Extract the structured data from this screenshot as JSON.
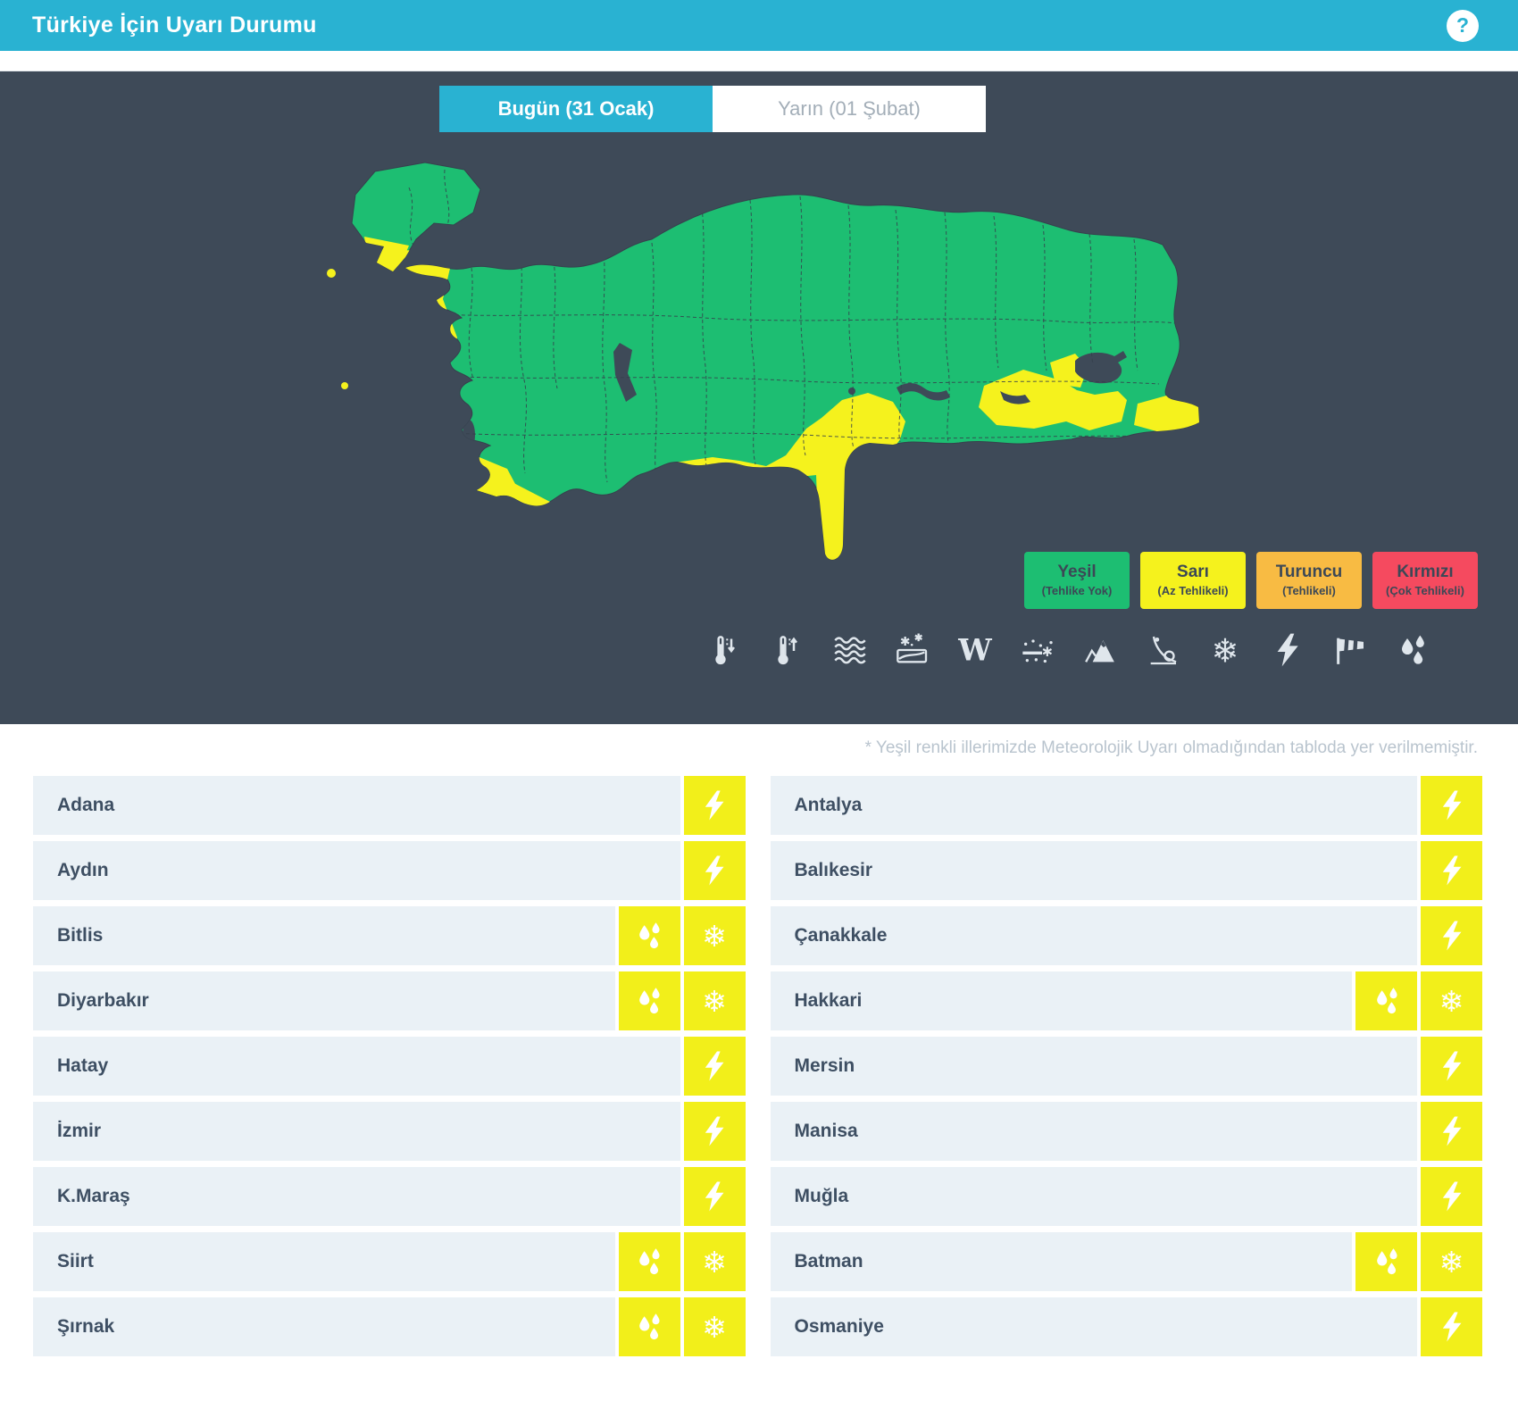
{
  "header": {
    "title": "Türkiye İçin Uyarı Durumu",
    "help_glyph": "?"
  },
  "tabs": [
    {
      "id": "today",
      "label": "Bugün (31 Ocak)",
      "active": true
    },
    {
      "id": "tomorrow",
      "label": "Yarın (01 Şubat)",
      "active": false
    }
  ],
  "map": {
    "description": "turkey-province-warning-map",
    "colors": {
      "no_danger_green": "#1dbe72",
      "warning_yellow": "#f5f21d",
      "sea_background": "#3e4a58",
      "province_border": "#36414d"
    }
  },
  "legend": {
    "items": [
      {
        "key": "yesil",
        "name": "Yeşil",
        "desc": "(Tehlike Yok)",
        "color": "#1dbe72"
      },
      {
        "key": "sari",
        "name": "Sarı",
        "desc": "(Az Tehlikeli)",
        "color": "#f5f21d"
      },
      {
        "key": "turuncu",
        "name": "Turuncu",
        "desc": "(Tehlikeli)",
        "color": "#f8bb43"
      },
      {
        "key": "kirmizi",
        "name": "Kırmızı",
        "desc": "(Çok Tehlikeli)",
        "color": "#f54a5f"
      }
    ]
  },
  "warning_icons": [
    "low-temperature",
    "high-temperature",
    "rough-sea",
    "agricultural-frost",
    "fog",
    "blowing-snow",
    "avalanche",
    "rockfall",
    "ice-snowflake",
    "thunderstorm",
    "storm-wind",
    "rain"
  ],
  "note": "* Yeşil renkli illerimizde Meteorolojik Uyarı olmadığından tabloda yer verilmemiştir.",
  "table": {
    "left": [
      {
        "province": "Adana",
        "warnings": [
          "thunderstorm"
        ]
      },
      {
        "province": "Aydın",
        "warnings": [
          "thunderstorm"
        ]
      },
      {
        "province": "Bitlis",
        "warnings": [
          "rain",
          "snow"
        ]
      },
      {
        "province": "Diyarbakır",
        "warnings": [
          "rain",
          "snow"
        ]
      },
      {
        "province": "Hatay",
        "warnings": [
          "thunderstorm"
        ]
      },
      {
        "province": "İzmir",
        "warnings": [
          "thunderstorm"
        ]
      },
      {
        "province": "K.Maraş",
        "warnings": [
          "thunderstorm"
        ]
      },
      {
        "province": "Siirt",
        "warnings": [
          "rain",
          "snow"
        ]
      },
      {
        "province": "Şırnak",
        "warnings": [
          "rain",
          "snow"
        ]
      }
    ],
    "right": [
      {
        "province": "Antalya",
        "warnings": [
          "thunderstorm"
        ]
      },
      {
        "province": "Balıkesir",
        "warnings": [
          "thunderstorm"
        ]
      },
      {
        "province": "Çanakkale",
        "warnings": [
          "thunderstorm"
        ]
      },
      {
        "province": "Hakkari",
        "warnings": [
          "rain",
          "snow"
        ]
      },
      {
        "province": "Mersin",
        "warnings": [
          "thunderstorm"
        ]
      },
      {
        "province": "Manisa",
        "warnings": [
          "thunderstorm"
        ]
      },
      {
        "province": "Muğla",
        "warnings": [
          "thunderstorm"
        ]
      },
      {
        "province": "Batman",
        "warnings": [
          "rain",
          "snow"
        ]
      },
      {
        "province": "Osmaniye",
        "warnings": [
          "thunderstorm"
        ]
      }
    ]
  },
  "colors": {
    "header_cyan": "#29b2d2",
    "panel_slate": "#3e4a58",
    "row_background": "#eaf1f6",
    "warning_cell_yellow": "#f2ef1a",
    "province_text": "#3e4f63",
    "note_text": "#b9c4ce",
    "icon_light": "#dfe6ec"
  }
}
